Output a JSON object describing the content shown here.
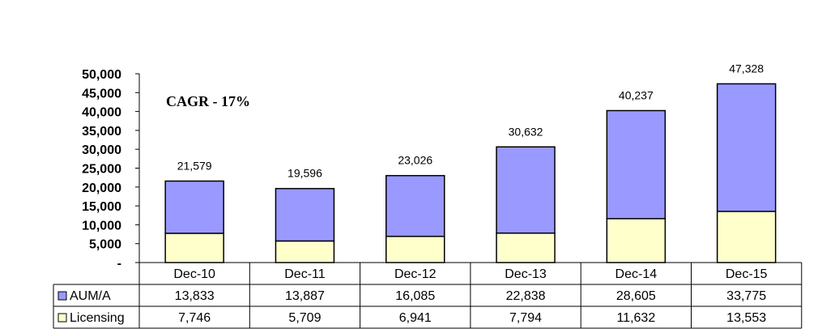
{
  "chart_data": {
    "type": "bar",
    "stacked": true,
    "categories": [
      "Dec-10",
      "Dec-11",
      "Dec-12",
      "Dec-13",
      "Dec-14",
      "Dec-15"
    ],
    "series": [
      {
        "name": "Licensing",
        "values": [
          7746,
          5709,
          6941,
          7794,
          11632,
          13553
        ],
        "color": "#ffffcc"
      },
      {
        "name": "AUM/A",
        "values": [
          13833,
          13887,
          16085,
          22838,
          28605,
          33775
        ],
        "color": "#9999ff"
      }
    ],
    "totals": [
      "21,579",
      "19,596",
      "23,026",
      "30,632",
      "40,237",
      "47,328"
    ],
    "annotation": "CAGR - 17%",
    "ylim": [
      0,
      50000
    ],
    "yticks": [
      "-",
      "5,000",
      "10,000",
      "15,000",
      "20,000",
      "25,000",
      "30,000",
      "35,000",
      "40,000",
      "45,000",
      "50,000"
    ],
    "data_table": {
      "rows": [
        {
          "label": "AUM/A",
          "values": [
            "13,833",
            "13,887",
            "16,085",
            "22,838",
            "28,605",
            "33,775"
          ]
        },
        {
          "label": "Licensing",
          "values": [
            "7,746",
            "5,709",
            "6,941",
            "7,794",
            "11,632",
            "13,553"
          ]
        }
      ]
    },
    "grid": false,
    "legend": "data-table"
  }
}
